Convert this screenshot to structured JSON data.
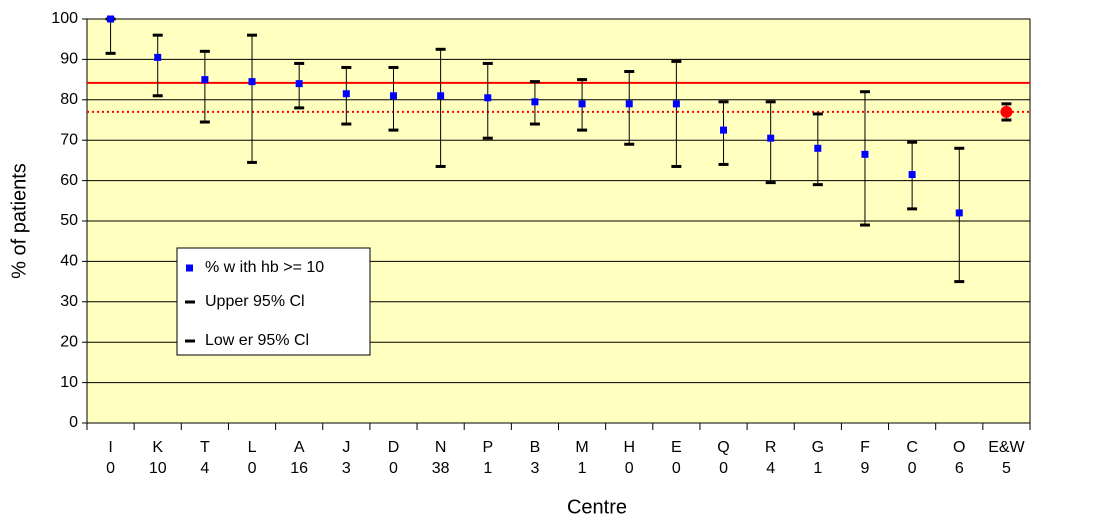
{
  "chart_data": {
    "type": "errorbar",
    "x_label": "Centre",
    "y_label": "% of patients",
    "categories": [
      [
        "I",
        "0"
      ],
      [
        "K",
        "10"
      ],
      [
        "T",
        "4"
      ],
      [
        "L",
        "0"
      ],
      [
        "A",
        "16"
      ],
      [
        "J",
        "3"
      ],
      [
        "D",
        "0"
      ],
      [
        "N",
        "38"
      ],
      [
        "P",
        "1"
      ],
      [
        "B",
        "3"
      ],
      [
        "M",
        "1"
      ],
      [
        "H",
        "0"
      ],
      [
        "E",
        "0"
      ],
      [
        "Q",
        "0"
      ],
      [
        "R",
        "4"
      ],
      [
        "G",
        "1"
      ],
      [
        "F",
        "9"
      ],
      [
        "C",
        "0"
      ],
      [
        "O",
        "6"
      ],
      [
        "E&W",
        "5"
      ]
    ],
    "series": [
      {
        "name": "% w ith hb >= 10",
        "color": "#0000ff",
        "point_colors": [
          "#0000ff",
          "#0000ff",
          "#0000ff",
          "#0000ff",
          "#0000ff",
          "#0000ff",
          "#0000ff",
          "#0000ff",
          "#0000ff",
          "#0000ff",
          "#0000ff",
          "#0000ff",
          "#0000ff",
          "#0000ff",
          "#0000ff",
          "#0000ff",
          "#0000ff",
          "#0000ff",
          "#0000ff",
          "#ff0000"
        ],
        "values": [
          100,
          90.5,
          85,
          84.5,
          84,
          81.5,
          81,
          81,
          80.5,
          79.5,
          79,
          79,
          79,
          72.5,
          70.5,
          68,
          66.5,
          61.5,
          52,
          77
        ]
      },
      {
        "name": "Upper 95% Cl",
        "color": "#000000",
        "values": [
          100,
          96,
          92,
          96,
          89,
          88,
          88,
          92.5,
          89,
          84.5,
          85,
          87,
          89.5,
          79.5,
          79.5,
          76.5,
          82,
          69.5,
          68,
          79
        ]
      },
      {
        "name": "Low er 95% Cl",
        "color": "#000000",
        "values": [
          91.5,
          81,
          74.5,
          64.5,
          78,
          74,
          72.5,
          63.5,
          70.5,
          74,
          72.5,
          69,
          63.5,
          64,
          59.5,
          59,
          49,
          53,
          35,
          75
        ]
      }
    ],
    "reference_lines": [
      {
        "value": 84.2,
        "color": "#ff0000",
        "style": "solid"
      },
      {
        "value": 77,
        "color": "#ff0000",
        "style": "dotted"
      }
    ],
    "ylim": [
      0,
      100
    ],
    "yticks": [
      0,
      10,
      20,
      30,
      40,
      50,
      60,
      70,
      80,
      90,
      100
    ],
    "grid": true,
    "plot_background": "#ffffc0"
  }
}
